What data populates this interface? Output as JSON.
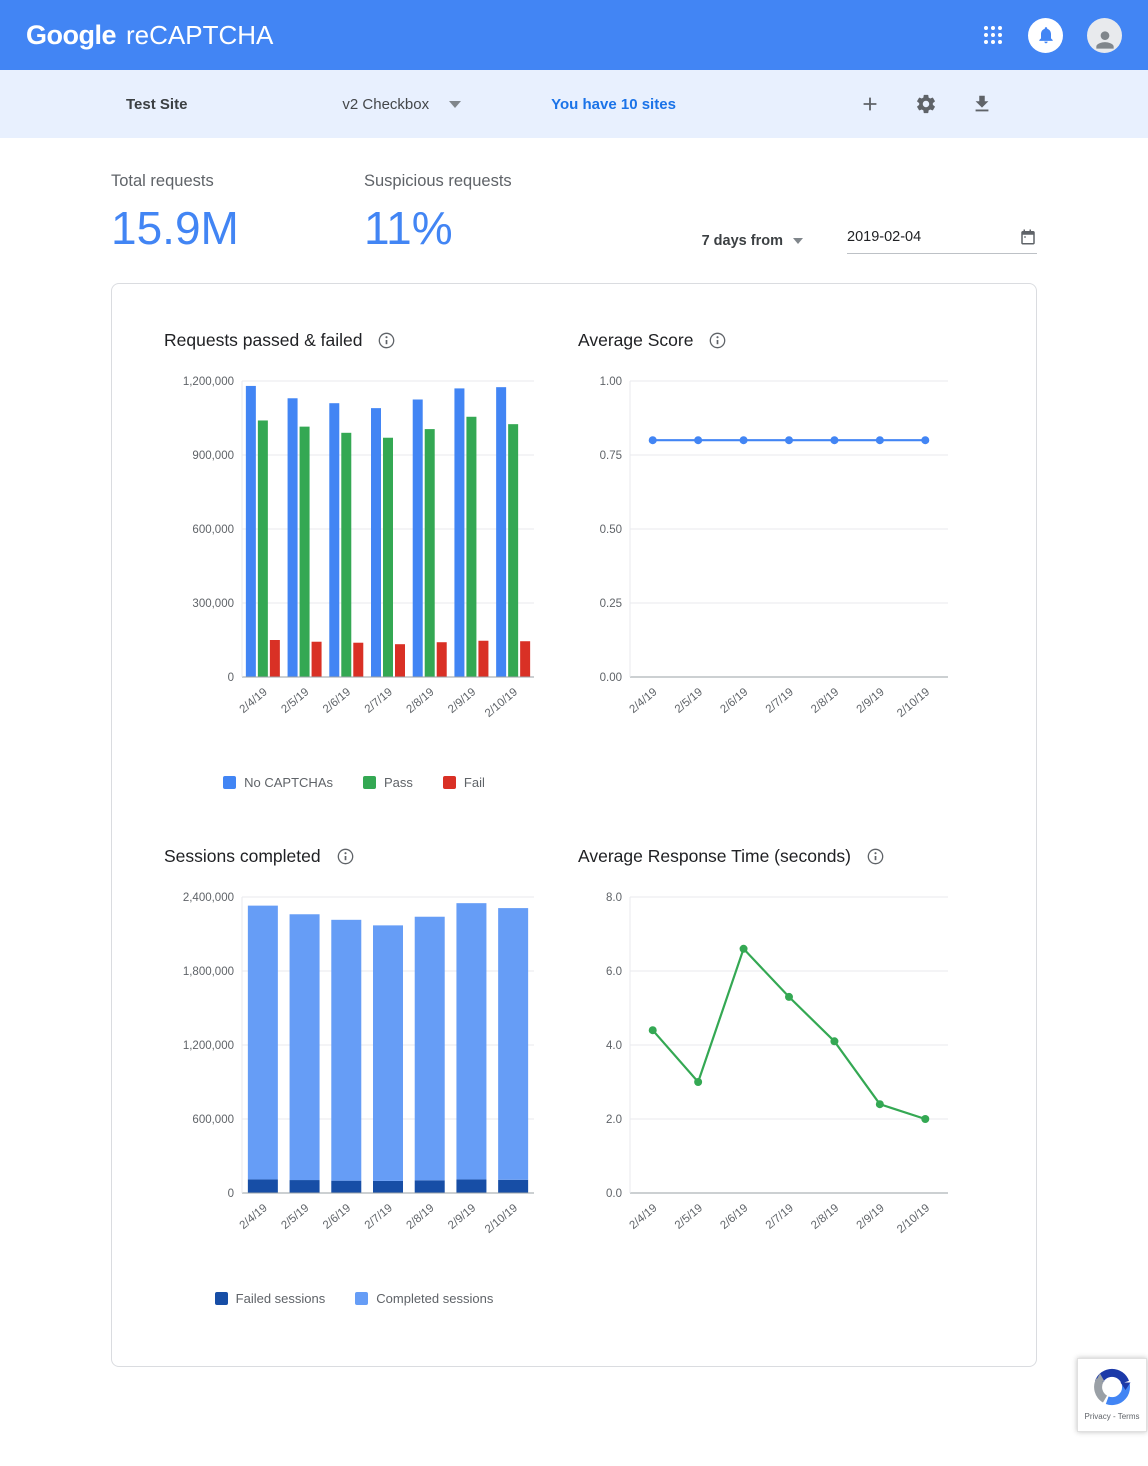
{
  "header": {
    "brand_google": "Google",
    "brand_product": "reCAPTCHA"
  },
  "toolbar": {
    "site_name": "Test Site",
    "site_type": "v2 Checkbox",
    "sites_link": "You have 10 sites"
  },
  "stats": {
    "total_requests_label": "Total requests",
    "total_requests_value": "15.9M",
    "suspicious_requests_label": "Suspicious requests",
    "suspicious_requests_value": "11%",
    "range_label": "7 days from",
    "range_date": "2019-02-04"
  },
  "icons": {
    "apps": "grid-3x3-dots",
    "notifications": "bell-in-circle",
    "account": "person-avatar",
    "add_site": "plus",
    "settings": "gear",
    "download": "arrow-down-to-bar",
    "calendar": "calendar",
    "info": "circled-i",
    "dropdown": "caret-down"
  },
  "colors": {
    "header_bg": "#4285f4",
    "toolbar_bg": "#e8f0fe",
    "link_blue": "#1a73e8",
    "stat_value_blue": "#4285f4",
    "bar_blue": "#4285f4",
    "pass_green": "#34a853",
    "fail_red": "#d93025",
    "failed_sessions_navy": "#174ea6",
    "completed_sessions_blue": "#669df6"
  },
  "badge": {
    "privacy_terms": "Privacy - Terms"
  },
  "chart_data": [
    {
      "id": "requests-passed-failed",
      "type": "bar",
      "title": "Requests passed & failed",
      "categories": [
        "2/4/19",
        "2/5/19",
        "2/6/19",
        "2/7/19",
        "2/8/19",
        "2/9/19",
        "2/10/19"
      ],
      "series": [
        {
          "name": "No CAPTCHAs",
          "color": "#4285f4",
          "values": [
            1180000,
            1130000,
            1110000,
            1090000,
            1125000,
            1170000,
            1175000
          ]
        },
        {
          "name": "Pass",
          "color": "#34a853",
          "values": [
            1040000,
            1015000,
            990000,
            970000,
            1005000,
            1055000,
            1025000
          ]
        },
        {
          "name": "Fail",
          "color": "#d93025",
          "values": [
            150000,
            143000,
            139000,
            133000,
            141000,
            147000,
            145000
          ]
        }
      ],
      "ylim": [
        0,
        1200000
      ],
      "yticks": [
        0,
        300000,
        600000,
        900000,
        1200000
      ],
      "tick_format": "comma",
      "grid": true,
      "show_legend": true,
      "legend_position": "bottom"
    },
    {
      "id": "average-score",
      "type": "line",
      "title": "Average Score",
      "categories": [
        "2/4/19",
        "2/5/19",
        "2/6/19",
        "2/7/19",
        "2/8/19",
        "2/9/19",
        "2/10/19"
      ],
      "series": [
        {
          "name": "Average score",
          "color": "#4285f4",
          "values": [
            0.8,
            0.8,
            0.8,
            0.8,
            0.8,
            0.8,
            0.8
          ]
        }
      ],
      "ylim": [
        0,
        1.0
      ],
      "yticks": [
        0,
        0.25,
        0.5,
        0.75,
        1.0
      ],
      "tick_format": "2dp",
      "grid": true,
      "show_legend": false
    },
    {
      "id": "sessions-completed",
      "type": "stacked-bar",
      "title": "Sessions completed",
      "categories": [
        "2/4/19",
        "2/5/19",
        "2/6/19",
        "2/7/19",
        "2/8/19",
        "2/9/19",
        "2/10/19"
      ],
      "series": [
        {
          "name": "Failed sessions",
          "color": "#174ea6",
          "values": [
            110000,
            105000,
            100000,
            98000,
            103000,
            110000,
            107000
          ]
        },
        {
          "name": "Completed sessions",
          "color": "#669df6",
          "values": [
            2220000,
            2155000,
            2115000,
            2072000,
            2137000,
            2240000,
            2203000
          ]
        }
      ],
      "ylim": [
        0,
        2400000
      ],
      "yticks": [
        0,
        600000,
        1200000,
        1800000,
        2400000
      ],
      "tick_format": "comma",
      "grid": true,
      "show_legend": true,
      "legend_position": "bottom"
    },
    {
      "id": "average-response-time",
      "type": "line",
      "title": "Average Response Time (seconds)",
      "categories": [
        "2/4/19",
        "2/5/19",
        "2/6/19",
        "2/7/19",
        "2/8/19",
        "2/9/19",
        "2/10/19"
      ],
      "series": [
        {
          "name": "Average response time",
          "color": "#34a853",
          "values": [
            4.4,
            3.0,
            6.6,
            5.3,
            4.1,
            2.4,
            2.0
          ]
        }
      ],
      "ylim": [
        0,
        8
      ],
      "yticks": [
        0,
        2,
        4,
        6,
        8
      ],
      "tick_format": "1dp",
      "grid": true,
      "show_legend": false
    }
  ]
}
